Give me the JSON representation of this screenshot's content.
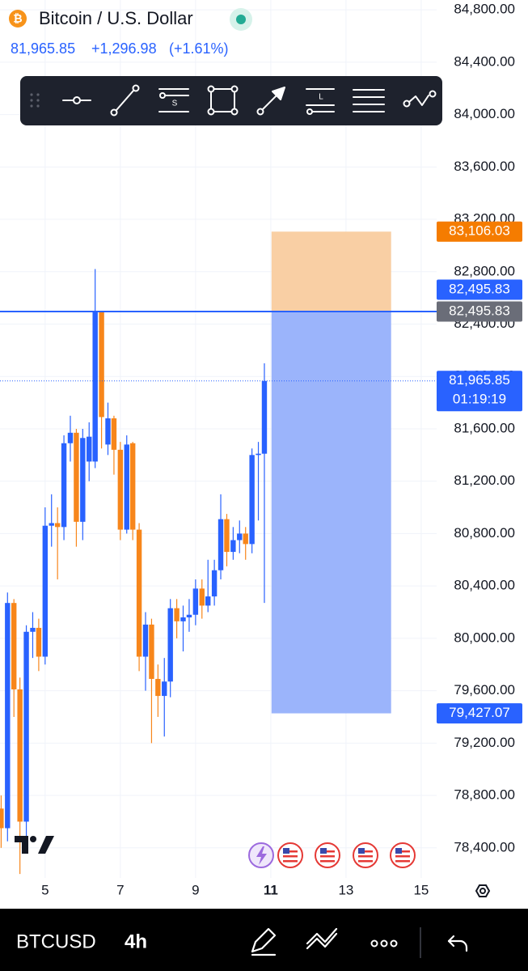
{
  "header": {
    "symbol_name": "Bitcoin / U.S. Dollar",
    "price": "81,965.85",
    "change": "+1,296.98",
    "change_pct": "(+1.61%)"
  },
  "chart_data": {
    "type": "candlestick",
    "x": [
      3.83,
      4,
      4.17,
      4.33,
      4.5,
      4.67,
      4.83,
      5,
      5.17,
      5.33,
      5.5,
      5.67,
      5.83,
      6,
      6.17,
      6.33,
      6.5,
      6.67,
      6.83,
      7,
      7.17,
      7.33,
      7.5,
      7.67,
      7.83,
      8,
      8.17,
      8.33,
      8.5,
      8.67,
      8.83,
      9,
      9.17,
      9.33,
      9.5,
      9.67,
      9.83,
      10,
      10.17,
      10.33,
      10.5,
      10.67,
      10.83
    ],
    "open": [
      78700,
      78550,
      80270,
      79610,
      78600,
      80050,
      80080,
      79860,
      80860,
      80880,
      80850,
      81490,
      81570,
      80890,
      81350,
      81350,
      82496,
      81480,
      81680,
      81440,
      80830,
      81490,
      80830,
      79860,
      80105,
      79690,
      79560,
      79670,
      80230,
      80130,
      80160,
      80180,
      80380,
      80250,
      80320,
      80520,
      80910,
      80660,
      80750,
      80800,
      80720,
      81400,
      81410
    ],
    "high": [
      78800,
      80350,
      80300,
      79700,
      80100,
      80200,
      80150,
      81000,
      81100,
      81000,
      81550,
      81700,
      81600,
      81600,
      81650,
      82820,
      82500,
      81800,
      81700,
      81500,
      81550,
      81500,
      80880,
      80200,
      80150,
      79800,
      79850,
      80300,
      80300,
      80250,
      80300,
      80450,
      80450,
      80600,
      80600,
      81100,
      80950,
      80850,
      80900,
      80850,
      81450,
      81500,
      82100
    ],
    "low": [
      78400,
      78450,
      79400,
      78200,
      78400,
      79850,
      79750,
      79800,
      80700,
      80450,
      80750,
      81350,
      80700,
      80750,
      81200,
      81300,
      81450,
      81400,
      81250,
      80750,
      80800,
      80750,
      79750,
      79600,
      79200,
      79400,
      79250,
      79550,
      80000,
      79900,
      80050,
      80100,
      80150,
      80200,
      80250,
      80450,
      80550,
      80600,
      80650,
      80600,
      80650,
      80900,
      80270
    ],
    "close": [
      78550,
      80270,
      79610,
      78600,
      80050,
      80080,
      79860,
      80860,
      80880,
      80850,
      81490,
      81570,
      80890,
      81530,
      81540,
      82496,
      81690,
      81680,
      81440,
      80830,
      81480,
      80830,
      79860,
      80105,
      79690,
      79560,
      79670,
      80230,
      80130,
      80160,
      80180,
      80380,
      80250,
      80320,
      80520,
      80910,
      80660,
      80750,
      80800,
      80720,
      81400,
      81410,
      81965.85
    ],
    "up_color": "#2962ff",
    "down_color": "#f7861b",
    "xlim": [
      3.8,
      15.41
    ],
    "xticks": [
      5,
      7,
      9,
      11,
      13,
      15
    ],
    "highlight_xtick": 11,
    "ylim": [
      78170,
      84875
    ],
    "yticks": [
      {
        "value": 78400,
        "label": "78,400.00"
      },
      {
        "value": 78800,
        "label": "78,800.00"
      },
      {
        "value": 79200,
        "label": "79,200.00"
      },
      {
        "value": 79600,
        "label": "79,600.00"
      },
      {
        "value": 80000,
        "label": "80,000.00"
      },
      {
        "value": 80400,
        "label": "80,400.00"
      },
      {
        "value": 80800,
        "label": "80,800.00"
      },
      {
        "value": 81200,
        "label": "81,200.00"
      },
      {
        "value": 81600,
        "label": "81,600.00"
      },
      {
        "value": 82000,
        "label": "82,000.00"
      },
      {
        "value": 82400,
        "label": "82,400.00"
      },
      {
        "value": 82800,
        "label": "82,800.00"
      },
      {
        "value": 83200,
        "label": "83,200.00"
      },
      {
        "value": 83600,
        "label": "83,600.00"
      },
      {
        "value": 84000,
        "label": "84,000.00"
      },
      {
        "value": 84400,
        "label": "84,400.00"
      },
      {
        "value": 84800,
        "label": "84,800.00"
      }
    ],
    "grid": true,
    "position": {
      "x_range": [
        11.02,
        14.2
      ],
      "target": 83106.03,
      "entry": 82495.83,
      "stop": 79427.07,
      "target_color": "#f9cfa4",
      "stop_color": "#9bb4fb"
    },
    "horizontal_line": {
      "value": 82495.83,
      "color": "#2962ff"
    },
    "last_price_line": {
      "value": 81965.85,
      "color": "#2962ff"
    },
    "price_labels": [
      {
        "value": 83106.03,
        "label": "83,106.03",
        "color": "#f57c00"
      },
      {
        "value": 82495.83,
        "label": "82,495.83",
        "color": "#2962ff"
      },
      {
        "value": 82495.83,
        "label": "82,495.83",
        "color": "#6a6d78"
      },
      {
        "value": 81965.85,
        "label": "81,965.85",
        "sublabel": "01:19:19",
        "color": "#2962ff"
      },
      {
        "value": 79427.07,
        "label": "79,427.07",
        "color": "#2962ff"
      }
    ]
  },
  "bottom_bar": {
    "symbol": "BTCUSD",
    "interval": "4h"
  }
}
